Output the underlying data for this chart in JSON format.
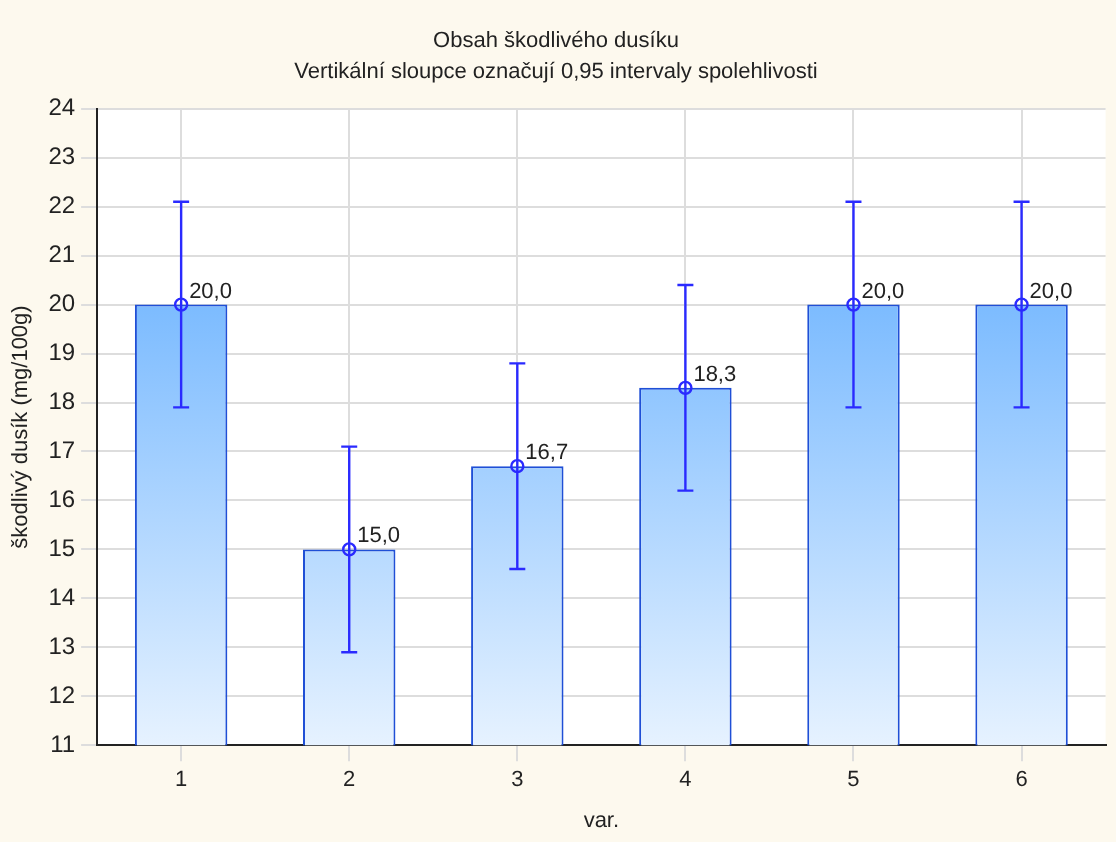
{
  "chart_data": {
    "type": "bar",
    "title": "Obsah škodlivého dusíku",
    "subtitle": "Vertikální sloupce označují 0,95 intervaly spolehlivosti",
    "xlabel": "var.",
    "ylabel": "škodlivý dusík (mg/100g)",
    "categories": [
      "1",
      "2",
      "3",
      "4",
      "5",
      "6"
    ],
    "series": [
      {
        "color": "#4da3ff",
        "values": [
          20,
          15,
          16.7,
          18.3,
          20,
          20
        ],
        "errors": [
          2.1,
          2.1,
          2.1,
          2.1,
          2.1,
          2.1
        ],
        "value_labels": [
          "20,0",
          "15,0",
          "16,7",
          "18,3",
          "20,0",
          "20,0"
        ]
      },
      {
        "type": "scatter",
        "color": "#2a2aff",
        "marker": "circle",
        "x": [
          "1",
          "2",
          "3",
          "4",
          "5",
          "6"
        ],
        "values": [
          20,
          15,
          16.7,
          18.3,
          20,
          20
        ]
      }
    ],
    "ylim": [
      11,
      24
    ],
    "yticks": [
      11,
      12,
      13,
      14,
      15,
      16,
      17,
      18,
      19,
      20,
      21,
      22,
      23,
      24
    ],
    "grid": true,
    "legend": false
  }
}
